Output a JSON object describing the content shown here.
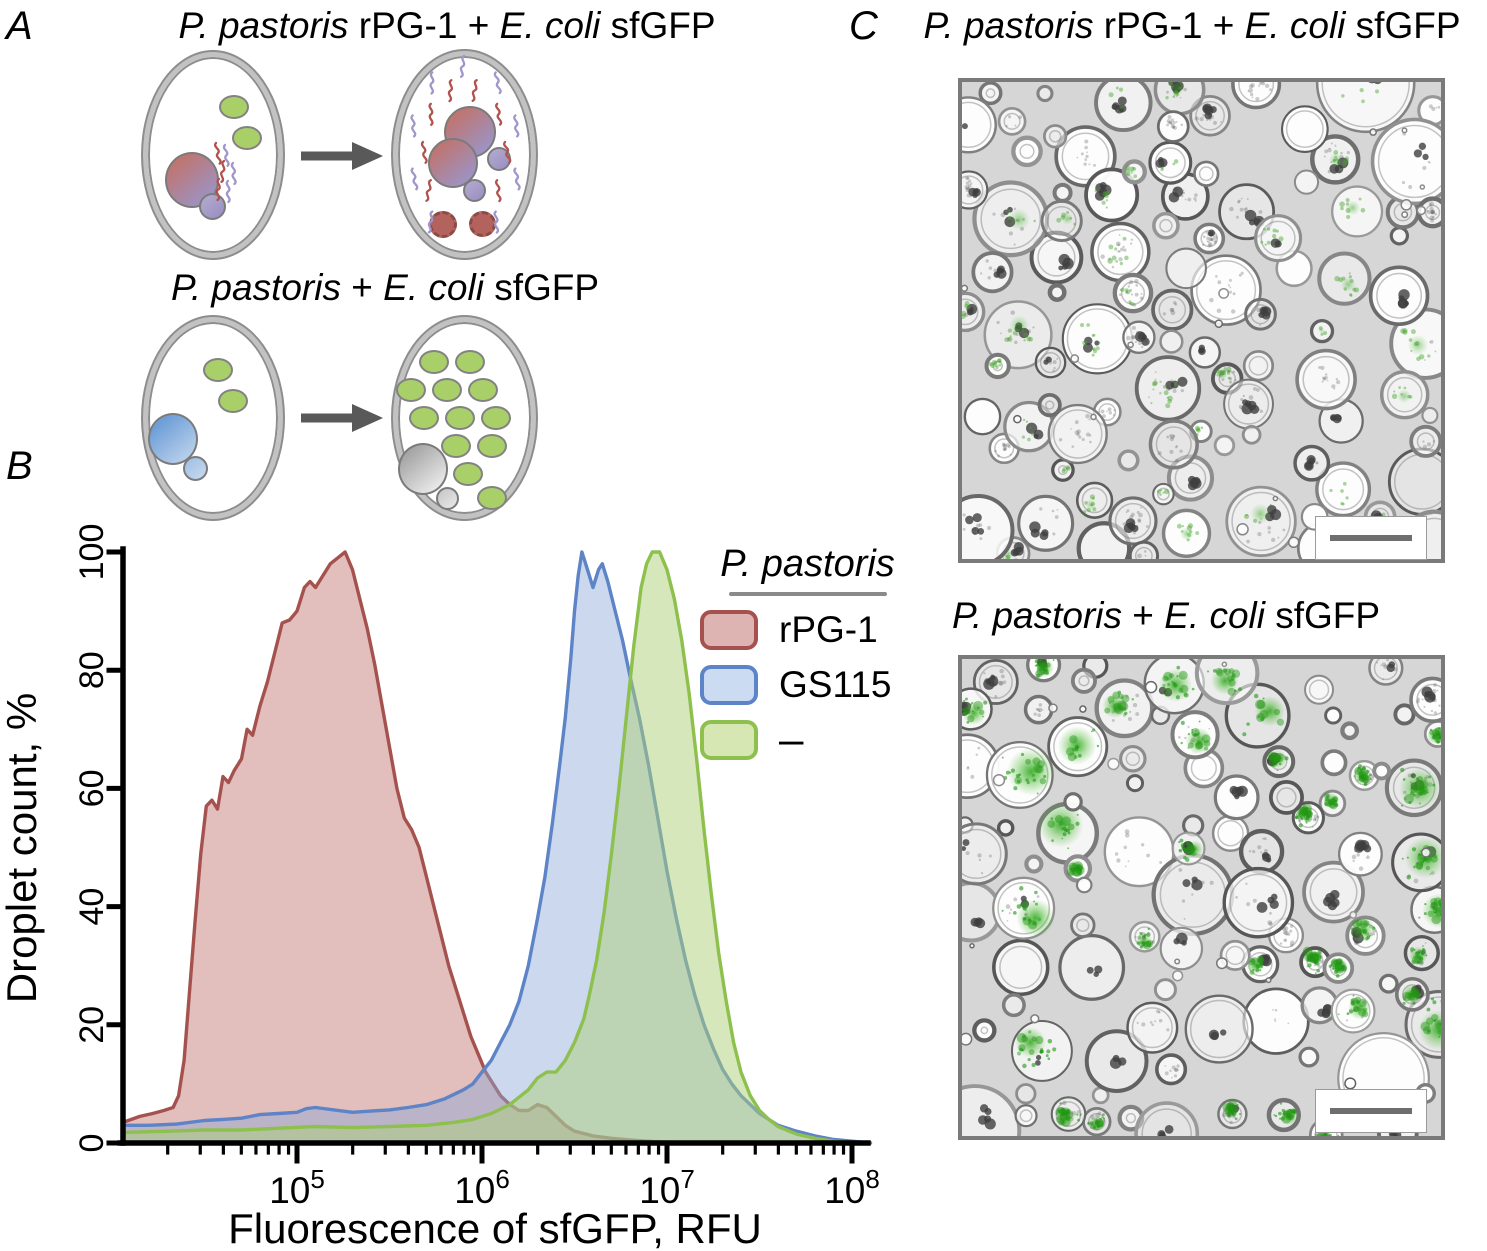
{
  "figure": {
    "panel_a": {
      "label": "A",
      "row1_title": [
        {
          "t": "P. pastoris"
        },
        {
          "t": " rPG-1 + "
        },
        {
          "t": "E. coli"
        },
        {
          "t": " sfGFP"
        }
      ],
      "row2_title": [
        {
          "t": "P. pastoris"
        },
        {
          "t": " + "
        },
        {
          "t": "E. coli"
        },
        {
          "t": " sfGFP"
        }
      ]
    },
    "panel_b": {
      "label": "B"
    },
    "panel_c": {
      "label": "C",
      "image1_title": [
        {
          "t": "P. pastoris"
        },
        {
          "t": " rPG-1 + "
        },
        {
          "t": "E. coli"
        },
        {
          "t": " sfGFP"
        }
      ],
      "image2_title": [
        {
          "t": "P. pastoris"
        },
        {
          "t": " + "
        },
        {
          "t": "E. coli"
        },
        {
          "t": " sfGFP"
        }
      ]
    }
  },
  "chart_data": {
    "type": "area",
    "subtype": "overlaid-histogram-distributions",
    "title": "",
    "xlabel": "Fluorescence of sfGFP, RFU",
    "ylabel": "Droplet count, %",
    "x_scale": "log10",
    "x_range_log10": [
      4.06,
      8.15
    ],
    "ylim": [
      0,
      100
    ],
    "grid": false,
    "y_ticks": [
      0,
      20,
      40,
      60,
      80,
      100
    ],
    "x_major_ticks": [
      {
        "base": "10",
        "exp": "5",
        "log10": 5
      },
      {
        "base": "10",
        "exp": "6",
        "log10": 6
      },
      {
        "base": "10",
        "exp": "7",
        "log10": 7
      },
      {
        "base": "10",
        "exp": "8",
        "log10": 8
      }
    ],
    "legend_title": "P. pastoris",
    "legend_position": "top-right",
    "series": [
      {
        "name": "rPG-1",
        "stroke": "#a5524e",
        "fill": "rgba(182,92,88,0.40)",
        "legend_fill": "#ddb4b1",
        "points_log10_pct": [
          [
            4.06,
            3.5
          ],
          [
            4.15,
            4.5
          ],
          [
            4.22,
            5
          ],
          [
            4.28,
            5.5
          ],
          [
            4.33,
            6
          ],
          [
            4.36,
            8
          ],
          [
            4.39,
            14
          ],
          [
            4.42,
            26
          ],
          [
            4.45,
            38
          ],
          [
            4.48,
            49
          ],
          [
            4.51,
            57
          ],
          [
            4.54,
            58
          ],
          [
            4.57,
            56.5
          ],
          [
            4.6,
            62
          ],
          [
            4.63,
            61
          ],
          [
            4.66,
            63
          ],
          [
            4.7,
            65
          ],
          [
            4.73,
            70
          ],
          [
            4.76,
            69
          ],
          [
            4.8,
            74
          ],
          [
            4.84,
            78
          ],
          [
            4.88,
            83
          ],
          [
            4.92,
            88
          ],
          [
            4.96,
            88.5
          ],
          [
            5.0,
            90
          ],
          [
            5.04,
            94
          ],
          [
            5.07,
            95
          ],
          [
            5.1,
            94
          ],
          [
            5.14,
            96
          ],
          [
            5.18,
            98
          ],
          [
            5.22,
            99
          ],
          [
            5.26,
            100
          ],
          [
            5.3,
            97
          ],
          [
            5.34,
            92
          ],
          [
            5.38,
            87
          ],
          [
            5.42,
            81
          ],
          [
            5.46,
            74
          ],
          [
            5.5,
            67
          ],
          [
            5.54,
            60
          ],
          [
            5.58,
            55
          ],
          [
            5.62,
            53
          ],
          [
            5.66,
            50
          ],
          [
            5.7,
            45
          ],
          [
            5.74,
            40
          ],
          [
            5.78,
            35
          ],
          [
            5.82,
            30
          ],
          [
            5.86,
            26
          ],
          [
            5.9,
            22
          ],
          [
            5.94,
            18
          ],
          [
            5.98,
            15
          ],
          [
            6.02,
            12
          ],
          [
            6.06,
            10
          ],
          [
            6.1,
            8
          ],
          [
            6.15,
            6.5
          ],
          [
            6.2,
            5.5
          ],
          [
            6.25,
            5.5
          ],
          [
            6.3,
            6.5
          ],
          [
            6.35,
            6
          ],
          [
            6.4,
            4.5
          ],
          [
            6.45,
            3
          ],
          [
            6.5,
            2
          ],
          [
            6.6,
            1.2
          ],
          [
            6.7,
            0.8
          ],
          [
            6.8,
            0.5
          ],
          [
            6.95,
            0.2
          ],
          [
            7.1,
            0
          ]
        ]
      },
      {
        "name": "GS115",
        "stroke": "#5d84c7",
        "fill": "rgba(139,168,214,0.45)",
        "legend_fill": "#cbdcf2",
        "points_log10_pct": [
          [
            4.06,
            3
          ],
          [
            4.2,
            3
          ],
          [
            4.35,
            3.2
          ],
          [
            4.5,
            3.8
          ],
          [
            4.6,
            4
          ],
          [
            4.7,
            4.2
          ],
          [
            4.8,
            4.8
          ],
          [
            4.9,
            5
          ],
          [
            5.0,
            5.2
          ],
          [
            5.05,
            5.8
          ],
          [
            5.1,
            6
          ],
          [
            5.2,
            5.6
          ],
          [
            5.3,
            5.2
          ],
          [
            5.4,
            5.4
          ],
          [
            5.5,
            5.6
          ],
          [
            5.6,
            6
          ],
          [
            5.7,
            6.5
          ],
          [
            5.8,
            7.5
          ],
          [
            5.9,
            9
          ],
          [
            5.95,
            10
          ],
          [
            6.0,
            12
          ],
          [
            6.05,
            14
          ],
          [
            6.1,
            17
          ],
          [
            6.15,
            20
          ],
          [
            6.2,
            24
          ],
          [
            6.25,
            30
          ],
          [
            6.3,
            38
          ],
          [
            6.34,
            45
          ],
          [
            6.38,
            54
          ],
          [
            6.42,
            64
          ],
          [
            6.45,
            72
          ],
          [
            6.48,
            82
          ],
          [
            6.5,
            90
          ],
          [
            6.52,
            96
          ],
          [
            6.54,
            100
          ],
          [
            6.57,
            97
          ],
          [
            6.6,
            94
          ],
          [
            6.63,
            97
          ],
          [
            6.65,
            98
          ],
          [
            6.68,
            95
          ],
          [
            6.72,
            90
          ],
          [
            6.76,
            85
          ],
          [
            6.8,
            79
          ],
          [
            6.85,
            72
          ],
          [
            6.9,
            64
          ],
          [
            6.95,
            55
          ],
          [
            7.0,
            46
          ],
          [
            7.05,
            38
          ],
          [
            7.1,
            31
          ],
          [
            7.15,
            25
          ],
          [
            7.2,
            20
          ],
          [
            7.25,
            16
          ],
          [
            7.3,
            12.5
          ],
          [
            7.35,
            10
          ],
          [
            7.4,
            8
          ],
          [
            7.45,
            6.5
          ],
          [
            7.5,
            5
          ],
          [
            7.55,
            4
          ],
          [
            7.6,
            3
          ],
          [
            7.7,
            2
          ],
          [
            7.8,
            1.2
          ],
          [
            7.9,
            0.6
          ],
          [
            8.0,
            0.3
          ],
          [
            8.1,
            0
          ]
        ]
      },
      {
        "name": "–",
        "stroke": "#8ec04e",
        "fill": "rgba(174,207,121,0.50)",
        "legend_fill": "#d7e7b4",
        "points_log10_pct": [
          [
            4.06,
            1.8
          ],
          [
            4.3,
            2
          ],
          [
            4.5,
            2.2
          ],
          [
            4.7,
            2.2
          ],
          [
            4.9,
            2.5
          ],
          [
            5.1,
            2.8
          ],
          [
            5.3,
            2.6
          ],
          [
            5.5,
            2.8
          ],
          [
            5.7,
            3
          ],
          [
            5.85,
            3.5
          ],
          [
            5.95,
            4
          ],
          [
            6.05,
            5
          ],
          [
            6.15,
            6.5
          ],
          [
            6.25,
            9
          ],
          [
            6.3,
            11
          ],
          [
            6.35,
            12
          ],
          [
            6.4,
            12
          ],
          [
            6.45,
            14
          ],
          [
            6.5,
            17
          ],
          [
            6.55,
            21
          ],
          [
            6.58,
            25
          ],
          [
            6.62,
            31
          ],
          [
            6.66,
            39
          ],
          [
            6.7,
            49
          ],
          [
            6.74,
            60
          ],
          [
            6.78,
            72
          ],
          [
            6.82,
            84
          ],
          [
            6.86,
            94
          ],
          [
            6.89,
            98
          ],
          [
            6.92,
            100
          ],
          [
            6.96,
            100
          ],
          [
            7.0,
            97
          ],
          [
            7.04,
            92
          ],
          [
            7.08,
            85
          ],
          [
            7.12,
            76
          ],
          [
            7.16,
            65
          ],
          [
            7.2,
            53
          ],
          [
            7.24,
            42
          ],
          [
            7.28,
            32
          ],
          [
            7.32,
            24
          ],
          [
            7.36,
            17
          ],
          [
            7.4,
            12
          ],
          [
            7.45,
            8
          ],
          [
            7.5,
            5.5
          ],
          [
            7.55,
            4
          ],
          [
            7.6,
            2.8
          ],
          [
            7.7,
            1.5
          ],
          [
            7.8,
            0.8
          ],
          [
            7.9,
            0.3
          ],
          [
            8.0,
            0
          ]
        ]
      }
    ]
  }
}
